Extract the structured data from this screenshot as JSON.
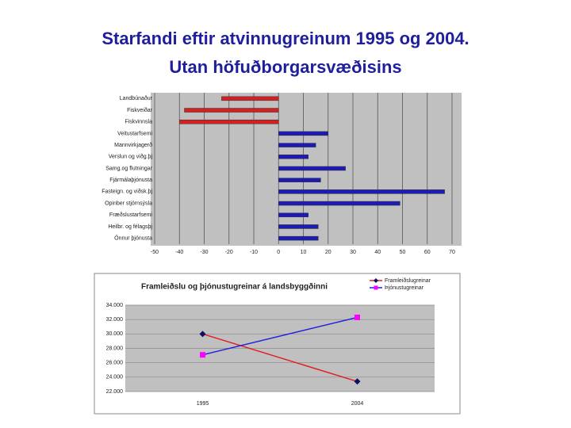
{
  "slide": {
    "title_lines": [
      "Starfandi eftir atvinnugreinum 1995 og 2004.",
      "Utan höfuðborgarsvæðisins"
    ]
  },
  "chart_data": [
    {
      "type": "hbar",
      "categories": [
        "Landbúnaður",
        "Fiskveiðar",
        "Fiskvinnsla",
        "Veitustarfsemi",
        "Mannvirkjagerð",
        "Verslun og viðg.þj",
        "Samg.og flutningar",
        "Fjármálaþjónusta",
        "Fasteign. og viðsk.þj",
        "Opinber stjórnsýsla",
        "Fræðslustarfsemi",
        "Heilbr. og félagsþj",
        "Önnur þjónusta"
      ],
      "values": [
        -23,
        -38,
        -40,
        20,
        15,
        12,
        27,
        17,
        67,
        49,
        12,
        16,
        16
      ],
      "color": "#1c1cb4",
      "negative_color": "#d42020",
      "xlim": [
        -50,
        70
      ],
      "xticks": [
        -50,
        -40,
        -30,
        -20,
        -10,
        0,
        10,
        20,
        30,
        40,
        50,
        60,
        70
      ],
      "grid": true
    },
    {
      "type": "line",
      "title": "Framleiðslu og þjónustugreinar á landsbyggðinni",
      "categories": [
        "1995",
        "2004"
      ],
      "series": [
        {
          "name": "Framleiðslugreinar",
          "color": "#e02020",
          "marker_color": "#101060",
          "marker": "diamond",
          "values": [
            30000,
            23400
          ]
        },
        {
          "name": "Þjónustugreinar",
          "color": "#2020e0",
          "marker_color": "#ff00ff",
          "marker": "square",
          "values": [
            27100,
            32300
          ]
        }
      ],
      "ylim": [
        22000,
        34000
      ],
      "yticks": [
        {
          "value": 22000,
          "label": "22.000"
        },
        {
          "value": 24000,
          "label": "24.000"
        },
        {
          "value": 26000,
          "label": "26.000"
        },
        {
          "value": 28000,
          "label": "28.000"
        },
        {
          "value": 30000,
          "label": "30.000"
        },
        {
          "value": 32000,
          "label": "32.000"
        },
        {
          "value": 34000,
          "label": "34.000"
        }
      ],
      "grid": true,
      "legend": "top-right"
    }
  ]
}
